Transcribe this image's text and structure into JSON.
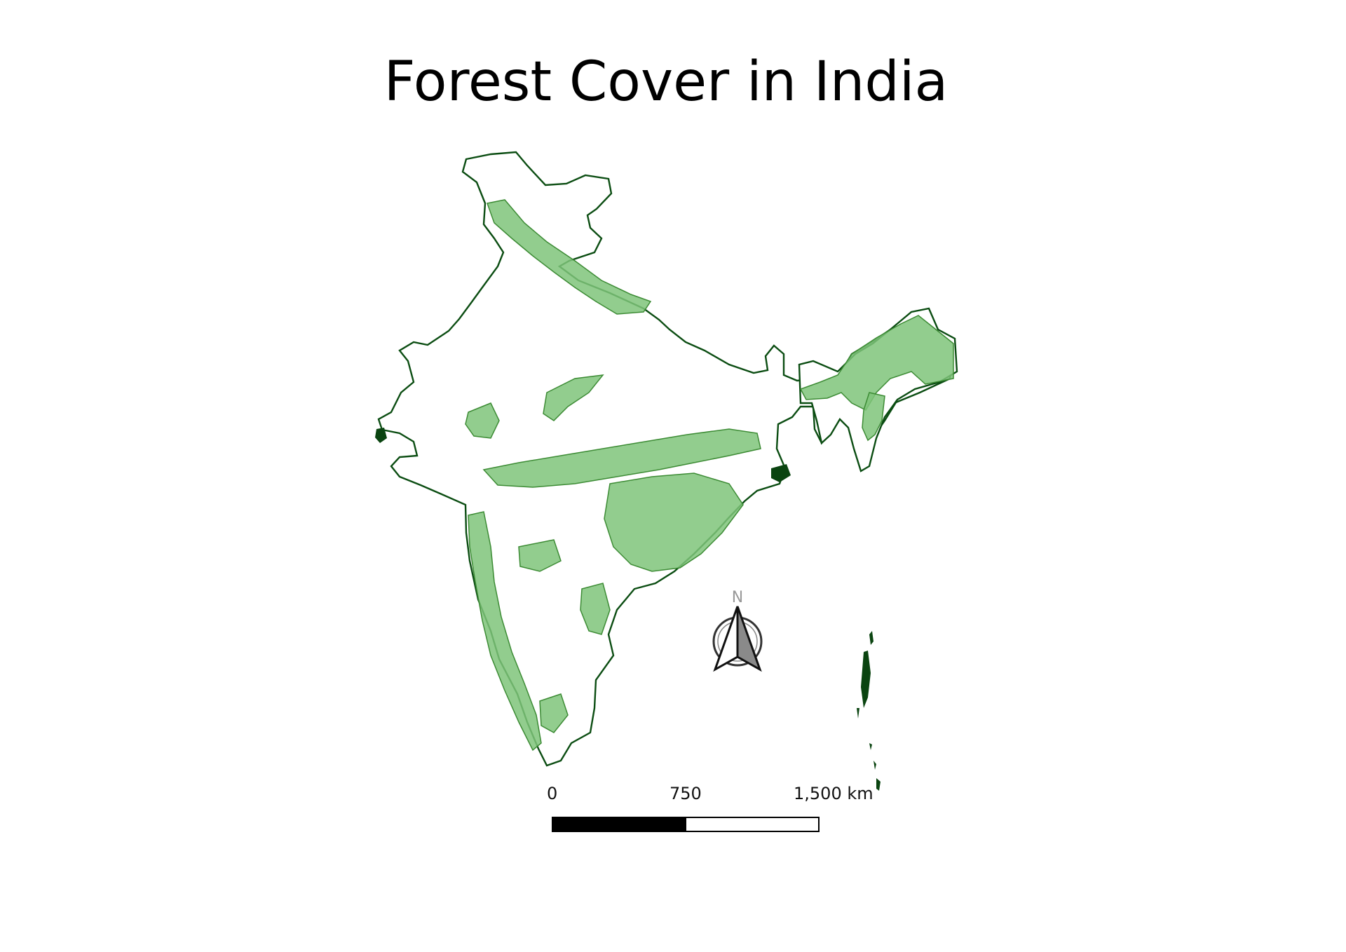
{
  "title": "Forest Cover in India",
  "north_arrow": {
    "label": "N"
  },
  "scale_bar": {
    "labels": [
      "0",
      "750",
      "1,500 km"
    ]
  },
  "colors": {
    "forest_fill": "#7fc47a",
    "forest_stroke": "#3c8b34",
    "boundary": "#0b4d12",
    "dense_patch": "#0a4410"
  }
}
